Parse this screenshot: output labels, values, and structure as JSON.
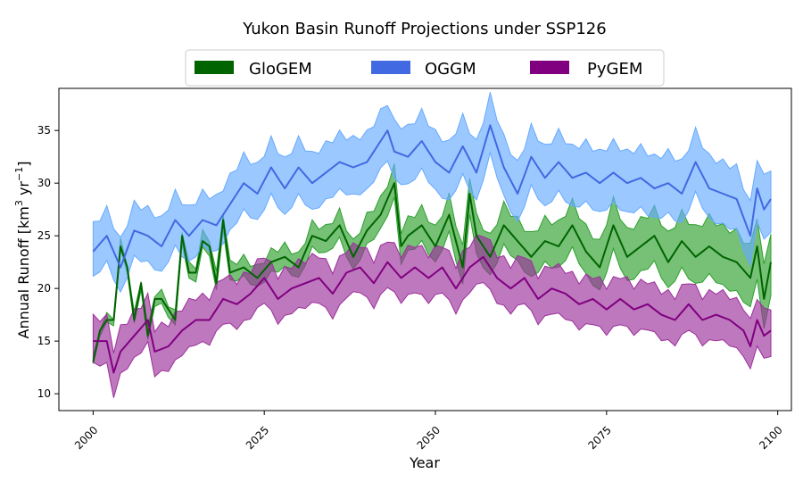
{
  "chart_data": {
    "type": "area",
    "title": "Yukon Basin Runoff Projections under SSP126",
    "xlabel": "Year",
    "ylabel_main": "Annual Runoff [km",
    "ylabel_sup1": "3",
    "ylabel_mid": " yr",
    "ylabel_sup2": "−1",
    "ylabel_end": "]",
    "xlim": [
      1995,
      2102
    ],
    "ylim": [
      8.4,
      39
    ],
    "xticks": [
      2000,
      2025,
      2050,
      2075,
      2100
    ],
    "yticks": [
      10,
      15,
      20,
      25,
      30,
      35
    ],
    "grid": false,
    "legend_position": "top-center",
    "series": [
      {
        "name": "GloGEM",
        "line_color": "#006400",
        "fill_color": "#2ca02c",
        "keypoints": [
          [
            2000,
            13
          ],
          [
            2001,
            16
          ],
          [
            2002,
            17
          ],
          [
            2003,
            17
          ],
          [
            2004,
            24
          ],
          [
            2005,
            22
          ],
          [
            2006,
            17
          ],
          [
            2007,
            20.5
          ],
          [
            2008,
            15.5
          ],
          [
            2009,
            19
          ],
          [
            2010,
            19
          ],
          [
            2011,
            18
          ],
          [
            2012,
            17
          ],
          [
            2013,
            25
          ],
          [
            2014,
            21.5
          ],
          [
            2015,
            21.5
          ],
          [
            2016,
            24.5
          ],
          [
            2017,
            24
          ],
          [
            2018,
            20.5
          ],
          [
            2019,
            26.5
          ],
          [
            2020,
            21.5
          ],
          [
            2022,
            22
          ],
          [
            2024,
            21
          ],
          [
            2026,
            22.5
          ],
          [
            2028,
            23
          ],
          [
            2030,
            22
          ],
          [
            2032,
            25
          ],
          [
            2034,
            24.5
          ],
          [
            2036,
            26
          ],
          [
            2038,
            23
          ],
          [
            2040,
            25.5
          ],
          [
            2042,
            27
          ],
          [
            2044,
            30
          ],
          [
            2045,
            24
          ],
          [
            2046,
            25
          ],
          [
            2048,
            26
          ],
          [
            2050,
            24
          ],
          [
            2052,
            27
          ],
          [
            2054,
            22
          ],
          [
            2055,
            29
          ],
          [
            2056,
            25
          ],
          [
            2058,
            23
          ],
          [
            2060,
            26
          ],
          [
            2062,
            24.5
          ],
          [
            2064,
            23
          ],
          [
            2066,
            24.5
          ],
          [
            2068,
            24
          ],
          [
            2070,
            26
          ],
          [
            2072,
            23.5
          ],
          [
            2074,
            22
          ],
          [
            2076,
            26
          ],
          [
            2078,
            23
          ],
          [
            2080,
            24
          ],
          [
            2082,
            25
          ],
          [
            2084,
            22.5
          ],
          [
            2086,
            24.5
          ],
          [
            2088,
            23
          ],
          [
            2090,
            24
          ],
          [
            2092,
            23
          ],
          [
            2094,
            22.5
          ],
          [
            2096,
            21
          ],
          [
            2097,
            24
          ],
          [
            2098,
            19
          ],
          [
            2099,
            22.5
          ]
        ],
        "half_width_start": 0.3,
        "half_width_end": 3.0
      },
      {
        "name": "OGGM",
        "line_color": "#4169e1",
        "fill_color": "#66aaff",
        "keypoints": [
          [
            2000,
            23.5
          ],
          [
            2002,
            25
          ],
          [
            2004,
            22
          ],
          [
            2006,
            25.5
          ],
          [
            2008,
            25
          ],
          [
            2010,
            24
          ],
          [
            2012,
            26.5
          ],
          [
            2014,
            25
          ],
          [
            2016,
            26.5
          ],
          [
            2018,
            26
          ],
          [
            2020,
            28
          ],
          [
            2022,
            30
          ],
          [
            2024,
            29
          ],
          [
            2026,
            31.5
          ],
          [
            2028,
            29.5
          ],
          [
            2030,
            31.5
          ],
          [
            2032,
            30
          ],
          [
            2034,
            31
          ],
          [
            2036,
            32
          ],
          [
            2038,
            31.5
          ],
          [
            2040,
            32
          ],
          [
            2042,
            34
          ],
          [
            2043,
            35
          ],
          [
            2044,
            33
          ],
          [
            2046,
            32.5
          ],
          [
            2048,
            34
          ],
          [
            2050,
            32
          ],
          [
            2052,
            31
          ],
          [
            2054,
            33.5
          ],
          [
            2056,
            31
          ],
          [
            2058,
            35.5
          ],
          [
            2060,
            31.5
          ],
          [
            2062,
            29
          ],
          [
            2064,
            32.5
          ],
          [
            2066,
            30.5
          ],
          [
            2068,
            32
          ],
          [
            2070,
            30.5
          ],
          [
            2072,
            31
          ],
          [
            2074,
            30
          ],
          [
            2076,
            31
          ],
          [
            2078,
            30
          ],
          [
            2080,
            30.5
          ],
          [
            2082,
            29.5
          ],
          [
            2084,
            30
          ],
          [
            2086,
            29
          ],
          [
            2088,
            32
          ],
          [
            2090,
            29.5
          ],
          [
            2092,
            29
          ],
          [
            2094,
            28.5
          ],
          [
            2096,
            25
          ],
          [
            2097,
            29.5
          ],
          [
            2098,
            27.5
          ],
          [
            2099,
            28.5
          ]
        ],
        "half_width_start": 2.5,
        "half_width_end": 3.0
      },
      {
        "name": "PyGEM",
        "line_color": "#800080",
        "fill_color": "#9b309b",
        "keypoints": [
          [
            2000,
            15
          ],
          [
            2002,
            15
          ],
          [
            2003,
            12
          ],
          [
            2004,
            14
          ],
          [
            2006,
            15.5
          ],
          [
            2008,
            17
          ],
          [
            2009,
            14
          ],
          [
            2011,
            14.5
          ],
          [
            2013,
            16
          ],
          [
            2015,
            17
          ],
          [
            2017,
            17
          ],
          [
            2019,
            19
          ],
          [
            2021,
            18.5
          ],
          [
            2023,
            19.5
          ],
          [
            2025,
            21
          ],
          [
            2027,
            19
          ],
          [
            2029,
            20
          ],
          [
            2031,
            20.5
          ],
          [
            2033,
            21
          ],
          [
            2035,
            19.5
          ],
          [
            2037,
            21.5
          ],
          [
            2039,
            22
          ],
          [
            2041,
            20.5
          ],
          [
            2043,
            22.5
          ],
          [
            2045,
            21
          ],
          [
            2047,
            22
          ],
          [
            2049,
            21
          ],
          [
            2051,
            22
          ],
          [
            2053,
            20
          ],
          [
            2055,
            22
          ],
          [
            2057,
            23
          ],
          [
            2059,
            21
          ],
          [
            2061,
            20
          ],
          [
            2063,
            21
          ],
          [
            2065,
            19
          ],
          [
            2067,
            20
          ],
          [
            2069,
            19.5
          ],
          [
            2071,
            18.5
          ],
          [
            2073,
            19
          ],
          [
            2075,
            18
          ],
          [
            2077,
            19
          ],
          [
            2079,
            18
          ],
          [
            2081,
            18.5
          ],
          [
            2083,
            17.5
          ],
          [
            2085,
            17
          ],
          [
            2087,
            18.5
          ],
          [
            2089,
            17
          ],
          [
            2091,
            17.5
          ],
          [
            2093,
            17
          ],
          [
            2095,
            16
          ],
          [
            2096,
            14.5
          ],
          [
            2097,
            17
          ],
          [
            2098,
            15.5
          ],
          [
            2099,
            16
          ]
        ],
        "half_width_start": 2.2,
        "half_width_end": 2.3
      }
    ]
  }
}
